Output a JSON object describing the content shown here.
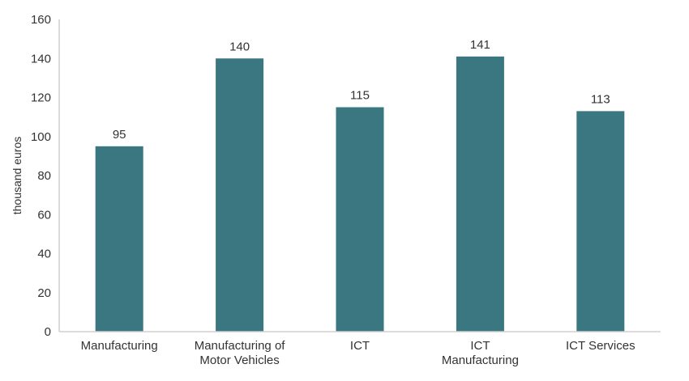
{
  "chart_data": {
    "type": "bar",
    "title": "",
    "xlabel": "",
    "ylabel": "thousand euros",
    "ylim": [
      0,
      160
    ],
    "yticks": [
      0,
      20,
      40,
      60,
      80,
      100,
      120,
      140,
      160
    ],
    "categories": [
      [
        "Manufacturing"
      ],
      [
        "Manufacturing of",
        "Motor Vehicles"
      ],
      [
        "ICT"
      ],
      [
        "ICT",
        "Manufacturing"
      ],
      [
        "ICT Services"
      ]
    ],
    "values": [
      95,
      140,
      115,
      141,
      113
    ],
    "data_labels": [
      "95",
      "140",
      "115",
      "141",
      "113"
    ],
    "grid": false,
    "bar_color": "#3a7780",
    "axis_color": "#d0d0d0"
  }
}
